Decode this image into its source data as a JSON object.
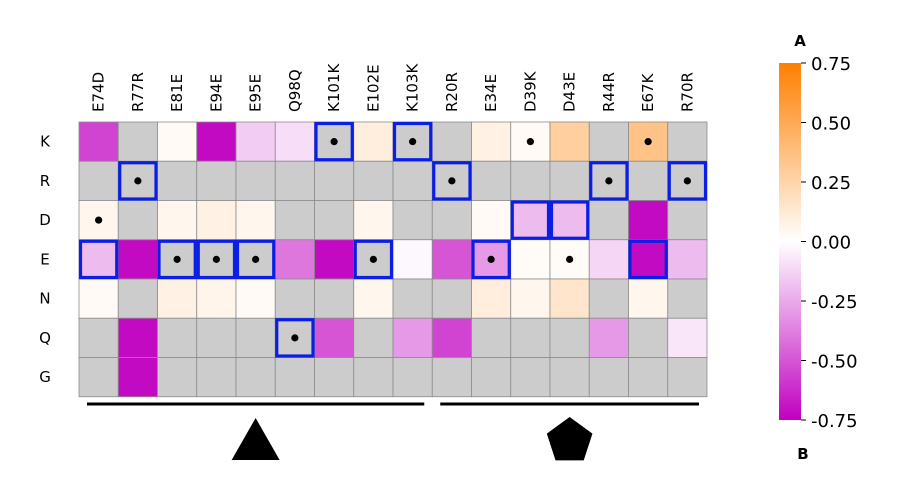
{
  "chart_data": {
    "type": "heatmap",
    "columns": [
      "E74D",
      "R77R",
      "E81E",
      "E94E",
      "E95E",
      "Q98Q",
      "K101K",
      "E102E",
      "K103K",
      "R20R",
      "E34E",
      "D39K",
      "D43E",
      "R44R",
      "E67K",
      "R70R"
    ],
    "rows": [
      "K",
      "R",
      "D",
      "E",
      "N",
      "Q",
      "G"
    ],
    "values": [
      [
        -0.55,
        null,
        0.03,
        -0.72,
        -0.15,
        -0.1,
        null,
        0.1,
        null,
        null,
        0.08,
        0.03,
        0.28,
        null,
        0.35,
        null
      ],
      [
        null,
        null,
        null,
        null,
        null,
        null,
        null,
        null,
        null,
        null,
        null,
        null,
        null,
        null,
        null,
        null
      ],
      [
        0.05,
        null,
        0.05,
        0.08,
        0.05,
        null,
        null,
        0.05,
        null,
        null,
        0.03,
        -0.2,
        -0.2,
        null,
        -0.72,
        null
      ],
      [
        -0.2,
        -0.72,
        null,
        null,
        null,
        -0.4,
        -0.72,
        null,
        -0.02,
        -0.5,
        -0.3,
        0.02,
        0.02,
        -0.12,
        -0.72,
        -0.2
      ],
      [
        0.03,
        null,
        0.08,
        0.06,
        0.03,
        null,
        null,
        0.05,
        null,
        null,
        0.1,
        0.05,
        0.15,
        null,
        0.05,
        null
      ],
      [
        null,
        -0.72,
        null,
        null,
        null,
        null,
        -0.5,
        null,
        -0.3,
        -0.55,
        null,
        null,
        null,
        -0.3,
        null,
        -0.07
      ],
      [
        null,
        -0.72,
        null,
        null,
        null,
        null,
        null,
        null,
        null,
        null,
        null,
        null,
        null,
        null,
        null,
        null
      ]
    ],
    "dots": [
      [
        0,
        6
      ],
      [
        0,
        8
      ],
      [
        0,
        11
      ],
      [
        0,
        14
      ],
      [
        1,
        1
      ],
      [
        1,
        9
      ],
      [
        1,
        13
      ],
      [
        1,
        15
      ],
      [
        2,
        0
      ],
      [
        3,
        2
      ],
      [
        3,
        3
      ],
      [
        3,
        4
      ],
      [
        3,
        7
      ],
      [
        3,
        10
      ],
      [
        3,
        12
      ],
      [
        5,
        5
      ]
    ],
    "boxes": [
      [
        0,
        6
      ],
      [
        0,
        8
      ],
      [
        1,
        1
      ],
      [
        1,
        9
      ],
      [
        1,
        13
      ],
      [
        1,
        15
      ],
      [
        2,
        11
      ],
      [
        2,
        12
      ],
      [
        3,
        0
      ],
      [
        3,
        2
      ],
      [
        3,
        3
      ],
      [
        3,
        4
      ],
      [
        3,
        7
      ],
      [
        3,
        10
      ],
      [
        3,
        14
      ],
      [
        5,
        5
      ]
    ],
    "colorbar": {
      "min": -0.75,
      "max": 0.75,
      "ticks": [
        "0.75",
        "0.50",
        "0.25",
        "0.00",
        "-0.25",
        "-0.50",
        "-0.75"
      ],
      "top_label": "A",
      "bottom_label": "B",
      "colors": {
        "high": "#ff7f00",
        "mid": "#ffffff",
        "low": "#c000c0"
      }
    },
    "nan_color": "#cccccc",
    "box_color": "#0a1ee6",
    "groups": [
      {
        "symbol": "triangle",
        "from_col": 0,
        "to_col": 8
      },
      {
        "symbol": "pentagon",
        "from_col": 9,
        "to_col": 15
      }
    ]
  }
}
